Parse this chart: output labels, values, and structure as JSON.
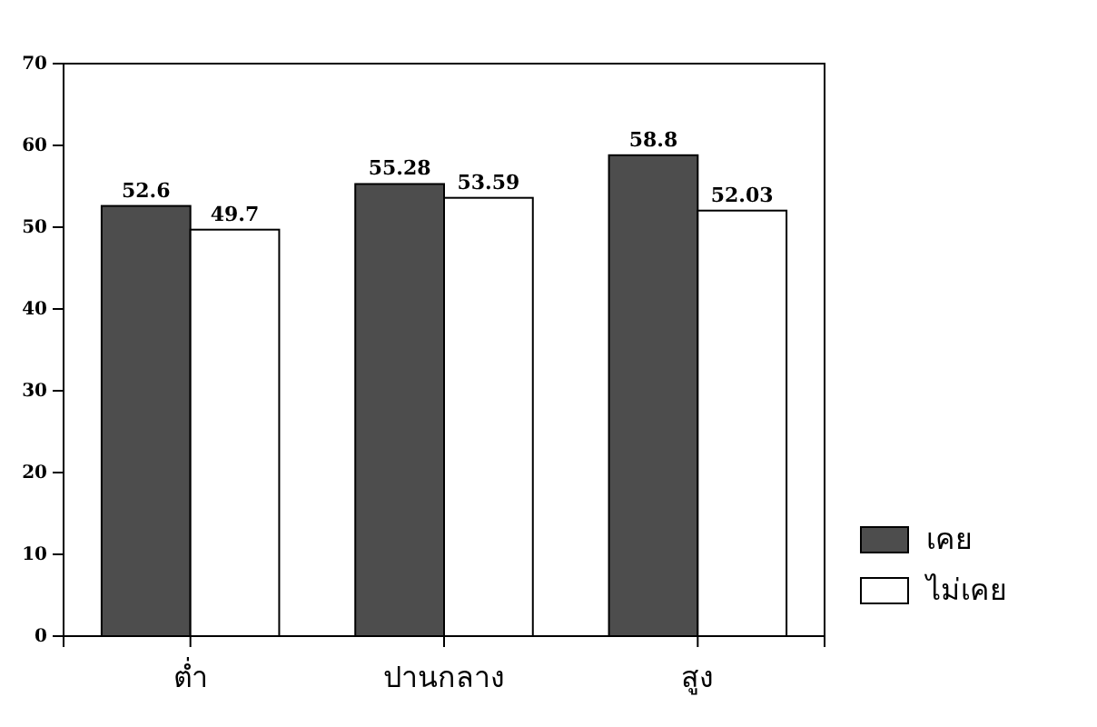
{
  "chart_data": {
    "type": "bar",
    "categories": [
      "ต่ำ",
      "ปานกลาง",
      "สูง"
    ],
    "series": [
      {
        "name": "เคย",
        "color": "#4d4d4d",
        "values": [
          52.6,
          55.28,
          58.8
        ]
      },
      {
        "name": "ไม่เคย",
        "color": "#ffffff",
        "values": [
          49.7,
          53.59,
          52.03
        ]
      }
    ],
    "ylim": [
      0,
      70
    ],
    "yticks": [
      0,
      10,
      20,
      30,
      40,
      50,
      60,
      70
    ],
    "data_labels": true,
    "legend": "right",
    "grid": false
  }
}
